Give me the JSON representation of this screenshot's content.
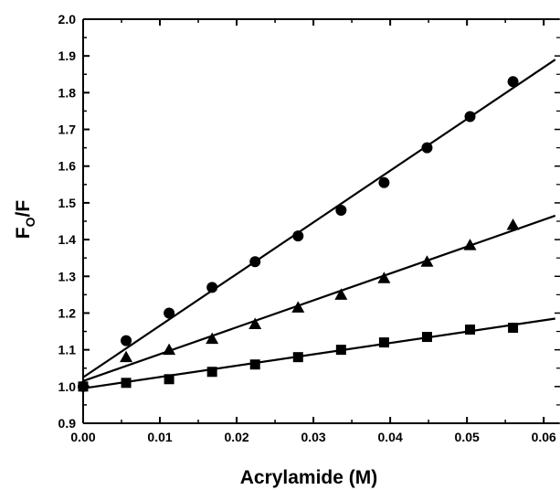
{
  "chart_data": {
    "type": "scatter",
    "xlabel": "Acrylamide (M)",
    "ylabel": {
      "main": "F",
      "subscript": "O",
      "suffix": "/F"
    },
    "xlim": [
      0.0,
      0.062
    ],
    "ylim": [
      0.9,
      2.0
    ],
    "x_ticks": [
      "0.00",
      "0.01",
      "0.02",
      "0.03",
      "0.04",
      "0.05",
      "0.06"
    ],
    "y_ticks": [
      "0.9",
      "1.0",
      "1.1",
      "1.2",
      "1.3",
      "1.4",
      "1.5",
      "1.6",
      "1.7",
      "1.8",
      "1.9",
      "2.0"
    ],
    "x_tick_values": [
      0.0,
      0.01,
      0.02,
      0.03,
      0.04,
      0.05,
      0.06
    ],
    "y_tick_values": [
      0.9,
      1.0,
      1.1,
      1.2,
      1.3,
      1.4,
      1.5,
      1.6,
      1.7,
      1.8,
      1.9,
      2.0
    ],
    "grid": false,
    "series": [
      {
        "marker": "circle",
        "points": [
          [
            0.0,
            1.0
          ],
          [
            0.0056,
            1.125
          ],
          [
            0.0112,
            1.2
          ],
          [
            0.0168,
            1.27
          ],
          [
            0.0224,
            1.34
          ],
          [
            0.028,
            1.41
          ],
          [
            0.0336,
            1.48
          ],
          [
            0.0392,
            1.555
          ],
          [
            0.0448,
            1.65
          ],
          [
            0.0504,
            1.735
          ],
          [
            0.056,
            1.83
          ]
        ],
        "fit": {
          "x": [
            0.0,
            0.0615
          ],
          "y": [
            1.025,
            1.89
          ]
        }
      },
      {
        "marker": "triangle",
        "points": [
          [
            0.0056,
            1.08
          ],
          [
            0.0112,
            1.1
          ],
          [
            0.0168,
            1.13
          ],
          [
            0.0224,
            1.17
          ],
          [
            0.028,
            1.215
          ],
          [
            0.0336,
            1.25
          ],
          [
            0.0392,
            1.295
          ],
          [
            0.0448,
            1.34
          ],
          [
            0.0504,
            1.385
          ],
          [
            0.056,
            1.44
          ]
        ],
        "fit": {
          "x": [
            0.0,
            0.0615
          ],
          "y": [
            1.015,
            1.465
          ]
        }
      },
      {
        "marker": "square",
        "points": [
          [
            0.0,
            1.0
          ],
          [
            0.0056,
            1.01
          ],
          [
            0.0112,
            1.02
          ],
          [
            0.0168,
            1.04
          ],
          [
            0.0224,
            1.06
          ],
          [
            0.028,
            1.08
          ],
          [
            0.0336,
            1.1
          ],
          [
            0.0392,
            1.12
          ],
          [
            0.0448,
            1.135
          ],
          [
            0.0504,
            1.155
          ],
          [
            0.056,
            1.16
          ]
        ],
        "fit": {
          "x": [
            0.0,
            0.0615
          ],
          "y": [
            0.995,
            1.185
          ]
        }
      }
    ],
    "colors": {
      "ink": "#000000",
      "background": "#ffffff"
    }
  }
}
